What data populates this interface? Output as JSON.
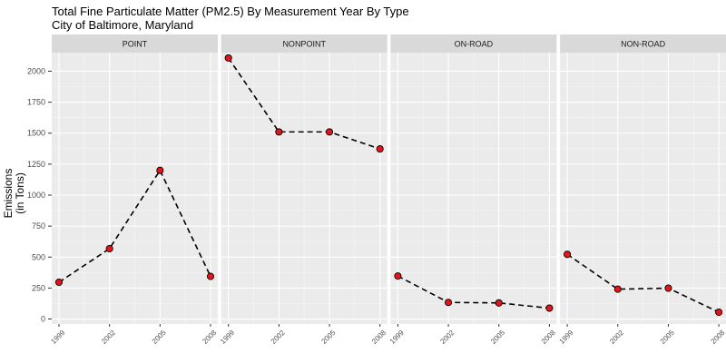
{
  "chart_data": {
    "type": "line",
    "title": "Total Fine Particulate Matter (PM2.5) By Measurement Year By Type",
    "subtitle": "City of Baltimore, Maryland",
    "xlabel": "",
    "ylabel": "Emissions (in Tons)",
    "ylabel_lines": [
      "Emissions",
      "(in Tons)"
    ],
    "x": [
      "1999",
      "2002",
      "2005",
      "2008"
    ],
    "yticks": [
      "0",
      "250",
      "500",
      "750",
      "1000",
      "1250",
      "1500",
      "1750",
      "2000"
    ],
    "ylim": [
      -40,
      2150
    ],
    "grid": true,
    "line_style": "dashed",
    "line_color": "#000000",
    "point_color": "#e8141b",
    "panel_background": "#ebebeb",
    "strip_background": "#d9d9d9",
    "panels": [
      {
        "name": "POINT",
        "values": [
          297,
          568,
          1200,
          344
        ]
      },
      {
        "name": "NONPOINT",
        "values": [
          2107,
          1510,
          1510,
          1373
        ]
      },
      {
        "name": "ON-ROAD",
        "values": [
          347,
          134,
          130,
          88
        ]
      },
      {
        "name": "NON-ROAD",
        "values": [
          522,
          241,
          249,
          55
        ]
      }
    ]
  }
}
